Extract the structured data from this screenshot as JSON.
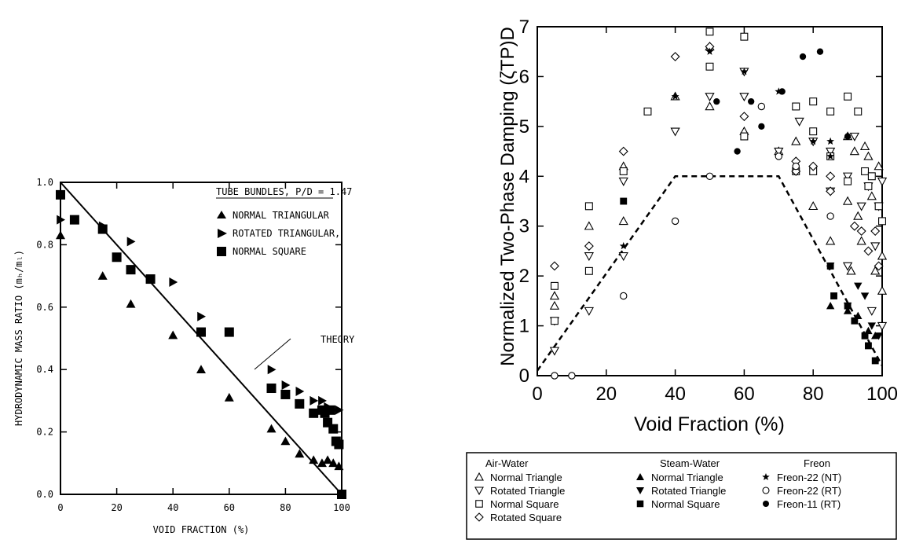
{
  "chart_data": [
    {
      "type": "scatter",
      "ylabel": "HYDRODYNAMIC MASS RATIO (mₕ/mₗ)",
      "xlabel": "VOID FRACTION (%)",
      "xlim": [
        0,
        100
      ],
      "ylim": [
        0,
        1.0
      ],
      "x_ticks": [
        "0",
        "20",
        "40",
        "60",
        "80",
        "100"
      ],
      "y_ticks": [
        "0.0",
        "0.2",
        "0.4",
        "0.6",
        "0.8",
        "1.0"
      ],
      "legend_title": "TUBE BUNDLES, P/D = 1.47",
      "legend_position": "top-right",
      "annotation": "THEORY",
      "series": [
        {
          "name": "NORMAL TRIANGULAR",
          "marker": "triangle-up",
          "points": [
            [
              0,
              0.83
            ],
            [
              15,
              0.7
            ],
            [
              25,
              0.61
            ],
            [
              40,
              0.51
            ],
            [
              50,
              0.4
            ],
            [
              60,
              0.31
            ],
            [
              75,
              0.21
            ],
            [
              80,
              0.17
            ],
            [
              85,
              0.13
            ],
            [
              90,
              0.11
            ],
            [
              93,
              0.1
            ],
            [
              95,
              0.11
            ],
            [
              97,
              0.1
            ],
            [
              99,
              0.09
            ]
          ]
        },
        {
          "name": "ROTATED TRIANGULAR,",
          "marker": "triangle-right",
          "points": [
            [
              0,
              0.88
            ],
            [
              15,
              0.86
            ],
            [
              25,
              0.81
            ],
            [
              40,
              0.68
            ],
            [
              50,
              0.57
            ],
            [
              75,
              0.4
            ],
            [
              80,
              0.35
            ],
            [
              85,
              0.33
            ],
            [
              90,
              0.3
            ],
            [
              93,
              0.3
            ],
            [
              95,
              0.28
            ],
            [
              97,
              0.27
            ],
            [
              99,
              0.27
            ]
          ]
        },
        {
          "name": "NORMAL SQUARE",
          "marker": "square",
          "points": [
            [
              0,
              0.96
            ],
            [
              5,
              0.88
            ],
            [
              15,
              0.85
            ],
            [
              20,
              0.76
            ],
            [
              25,
              0.72
            ],
            [
              32,
              0.69
            ],
            [
              50,
              0.52
            ],
            [
              60,
              0.52
            ],
            [
              75,
              0.34
            ],
            [
              80,
              0.32
            ],
            [
              85,
              0.29
            ],
            [
              90,
              0.26
            ],
            [
              93,
              0.27
            ],
            [
              94,
              0.26
            ],
            [
              95,
              0.23
            ],
            [
              96,
              0.27
            ],
            [
              97,
              0.21
            ],
            [
              98,
              0.17
            ],
            [
              99,
              0.16
            ],
            [
              100,
              0.0
            ]
          ]
        }
      ],
      "theory_line": [
        [
          0,
          1.0
        ],
        [
          100,
          0.0
        ]
      ]
    },
    {
      "type": "scatter",
      "ylabel": "Normalized Two-Phase Damping (ζTP)D",
      "xlabel": "Void Fraction (%)",
      "xlim": [
        0,
        100
      ],
      "ylim": [
        0,
        7
      ],
      "x_ticks": [
        "0",
        "20",
        "40",
        "60",
        "80",
        "100"
      ],
      "y_ticks": [
        "0",
        "1",
        "2",
        "3",
        "4",
        "5",
        "6",
        "7"
      ],
      "reference_line": [
        [
          0,
          0.1
        ],
        [
          40,
          4
        ],
        [
          70,
          4
        ],
        [
          100,
          0.2
        ]
      ],
      "legend_position": "bottom",
      "legend": {
        "groups": [
          {
            "title": "Air-Water",
            "items": [
              {
                "marker": "open-triangle-up",
                "label": "Normal Triangle"
              },
              {
                "marker": "open-triangle-down",
                "label": "Rotated Triangle"
              },
              {
                "marker": "open-square",
                "label": "Normal Square"
              },
              {
                "marker": "open-diamond",
                "label": "Rotated Square"
              }
            ]
          },
          {
            "title": "Steam-Water",
            "items": [
              {
                "marker": "filled-triangle-up",
                "label": "Normal Triangle"
              },
              {
                "marker": "filled-triangle-down",
                "label": "Rotated Triangle"
              },
              {
                "marker": "filled-square",
                "label": "Normal Square"
              }
            ]
          },
          {
            "title": "Freon",
            "items": [
              {
                "marker": "star",
                "label": "Freon-22 (NT)"
              },
              {
                "marker": "open-circle",
                "label": "Freon-22 (RT)"
              },
              {
                "marker": "filled-circle",
                "label": "Freon-11 (RT)"
              }
            ]
          }
        ]
      },
      "series": [
        {
          "name": "Air-Water Normal Triangle",
          "marker": "open-triangle-up",
          "points": [
            [
              5,
              1.4
            ],
            [
              5,
              1.6
            ],
            [
              15,
              3.0
            ],
            [
              25,
              4.2
            ],
            [
              25,
              3.1
            ],
            [
              40,
              5.6
            ],
            [
              50,
              5.4
            ],
            [
              50,
              6.6
            ],
            [
              60,
              4.9
            ],
            [
              70,
              4.5
            ],
            [
              75,
              4.7
            ],
            [
              80,
              3.4
            ],
            [
              85,
              2.7
            ],
            [
              90,
              4.8
            ],
            [
              90,
              3.5
            ],
            [
              91,
              2.1
            ],
            [
              92,
              4.5
            ],
            [
              93,
              3.2
            ],
            [
              94,
              2.7
            ],
            [
              95,
              4.6
            ],
            [
              96,
              4.4
            ],
            [
              97,
              3.6
            ],
            [
              98,
              2.1
            ],
            [
              99,
              4.2
            ],
            [
              100,
              2.4
            ],
            [
              100,
              1.7
            ]
          ]
        },
        {
          "name": "Air-Water Rotated Triangle",
          "marker": "open-triangle-down",
          "points": [
            [
              5,
              1.1
            ],
            [
              5,
              0.5
            ],
            [
              15,
              1.3
            ],
            [
              15,
              2.4
            ],
            [
              25,
              2.4
            ],
            [
              25,
              3.9
            ],
            [
              40,
              4.9
            ],
            [
              50,
              5.6
            ],
            [
              60,
              5.6
            ],
            [
              60,
              6.1
            ],
            [
              70,
              4.5
            ],
            [
              76,
              5.1
            ],
            [
              80,
              4.7
            ],
            [
              85,
              4.5
            ],
            [
              85,
              3.7
            ],
            [
              90,
              4.0
            ],
            [
              90,
              2.2
            ],
            [
              92,
              4.8
            ],
            [
              94,
              3.4
            ],
            [
              96,
              3.8
            ],
            [
              97,
              1.3
            ],
            [
              98,
              2.6
            ],
            [
              99,
              3.4
            ],
            [
              100,
              3.9
            ],
            [
              100,
              1.0
            ]
          ]
        },
        {
          "name": "Air-Water Normal Square",
          "marker": "open-square",
          "points": [
            [
              5,
              1.8
            ],
            [
              5,
              1.1
            ],
            [
              15,
              3.4
            ],
            [
              15,
              2.1
            ],
            [
              25,
              4.1
            ],
            [
              32,
              5.3
            ],
            [
              50,
              6.9
            ],
            [
              50,
              6.2
            ],
            [
              60,
              6.8
            ],
            [
              60,
              4.8
            ],
            [
              75,
              5.4
            ],
            [
              75,
              4.1
            ],
            [
              80,
              5.5
            ],
            [
              80,
              4.9
            ],
            [
              80,
              4.1
            ],
            [
              85,
              5.3
            ],
            [
              85,
              4.4
            ],
            [
              90,
              5.6
            ],
            [
              90,
              3.9
            ],
            [
              93,
              5.3
            ],
            [
              95,
              4.1
            ],
            [
              96,
              3.8
            ],
            [
              97,
              4.0
            ],
            [
              99,
              3.4
            ],
            [
              100,
              3.1
            ]
          ]
        },
        {
          "name": "Air-Water Rotated Square",
          "marker": "open-diamond",
          "points": [
            [
              5,
              2.2
            ],
            [
              15,
              2.6
            ],
            [
              25,
              4.5
            ],
            [
              40,
              6.4
            ],
            [
              50,
              6.6
            ],
            [
              60,
              5.2
            ],
            [
              75,
              4.3
            ],
            [
              75,
              4.1
            ],
            [
              80,
              4.2
            ],
            [
              85,
              4.0
            ],
            [
              85,
              3.7
            ],
            [
              92,
              3.0
            ],
            [
              94,
              2.9
            ],
            [
              96,
              2.5
            ],
            [
              98,
              2.9
            ],
            [
              99,
              2.2
            ]
          ]
        },
        {
          "name": "Steam-Water Normal Triangle",
          "marker": "filled-triangle-up",
          "points": [
            [
              85,
              1.4
            ],
            [
              90,
              1.3
            ],
            [
              93,
              1.2
            ],
            [
              96,
              0.9
            ],
            [
              98,
              0.8
            ]
          ]
        },
        {
          "name": "Steam-Water Rotated Triangle",
          "marker": "filled-triangle-down",
          "points": [
            [
              85,
              2.2
            ],
            [
              90,
              1.4
            ],
            [
              93,
              1.8
            ],
            [
              95,
              1.6
            ],
            [
              97,
              1.0
            ],
            [
              99,
              0.8
            ]
          ]
        },
        {
          "name": "Steam-Water Normal Square",
          "marker": "filled-square",
          "points": [
            [
              25,
              3.5
            ],
            [
              85,
              2.2
            ],
            [
              86,
              1.6
            ],
            [
              90,
              1.4
            ],
            [
              92,
              1.1
            ],
            [
              95,
              0.8
            ],
            [
              96,
              0.6
            ],
            [
              98,
              0.3
            ]
          ]
        },
        {
          "name": "Freon-22 (NT)",
          "marker": "star",
          "points": [
            [
              25,
              2.6
            ],
            [
              40,
              5.6
            ],
            [
              50,
              6.5
            ],
            [
              60,
              6.1
            ],
            [
              70,
              5.7
            ],
            [
              80,
              4.7
            ],
            [
              85,
              4.7
            ],
            [
              85,
              4.4
            ]
          ]
        },
        {
          "name": "Freon-22 (RT)",
          "marker": "open-circle",
          "points": [
            [
              5,
              0.0
            ],
            [
              10,
              0.0
            ],
            [
              25,
              1.6
            ],
            [
              40,
              3.1
            ],
            [
              50,
              4.0
            ],
            [
              65,
              5.4
            ],
            [
              70,
              4.4
            ],
            [
              75,
              4.2
            ],
            [
              85,
              3.2
            ]
          ]
        },
        {
          "name": "Freon-11 (RT)",
          "marker": "filled-circle",
          "points": [
            [
              52,
              5.5
            ],
            [
              58,
              4.5
            ],
            [
              62,
              5.5
            ],
            [
              65,
              5.0
            ],
            [
              71,
              5.7
            ],
            [
              77,
              6.4
            ],
            [
              82,
              6.5
            ],
            [
              90,
              4.8
            ]
          ]
        }
      ]
    }
  ]
}
